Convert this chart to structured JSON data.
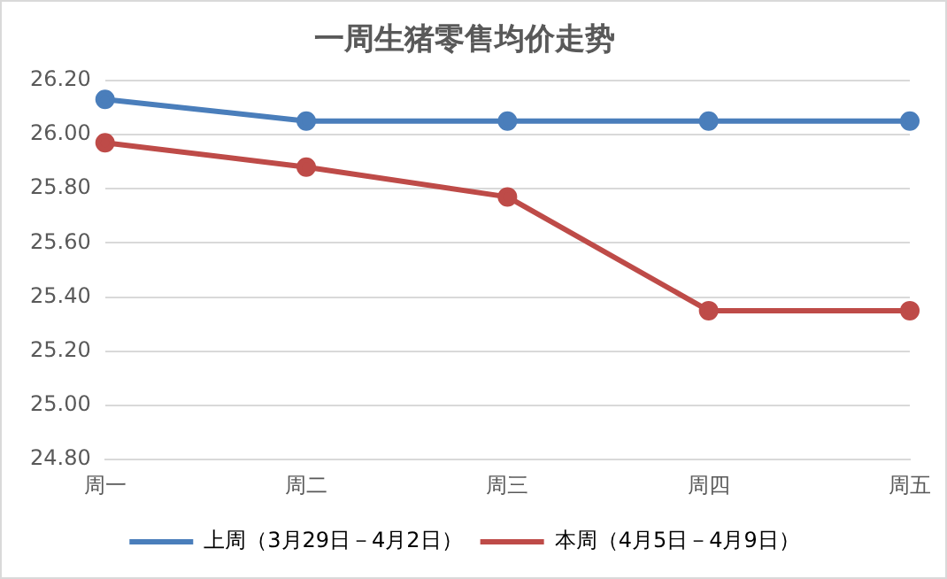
{
  "chart_data": {
    "type": "line",
    "title": "一周生猪零售均价走势",
    "categories": [
      "周一",
      "周二",
      "周三",
      "周四",
      "周五"
    ],
    "series": [
      {
        "name": "上周（3月29日－4月2日）",
        "color": "#4a7ebb",
        "values": [
          26.13,
          26.05,
          26.05,
          26.05,
          26.05
        ]
      },
      {
        "name": "本周（4月5日－4月9日）",
        "color": "#be4b48",
        "values": [
          25.97,
          25.88,
          25.77,
          25.35,
          25.35
        ]
      }
    ],
    "ylim": [
      24.8,
      26.2
    ],
    "yticks": [
      {
        "value": 24.8,
        "label": "24.80"
      },
      {
        "value": 25,
        "label": "25.00"
      },
      {
        "value": 25.2,
        "label": "25.20"
      },
      {
        "value": 25.4,
        "label": "25.40"
      },
      {
        "value": 25.6,
        "label": "25.60"
      },
      {
        "value": 25.8,
        "label": "25.80"
      },
      {
        "value": 26,
        "label": "26.00"
      },
      {
        "value": 26.2,
        "label": "26.20"
      }
    ],
    "grid": "y",
    "legend": "bottom",
    "marker": "circle",
    "line_style": "solid"
  }
}
